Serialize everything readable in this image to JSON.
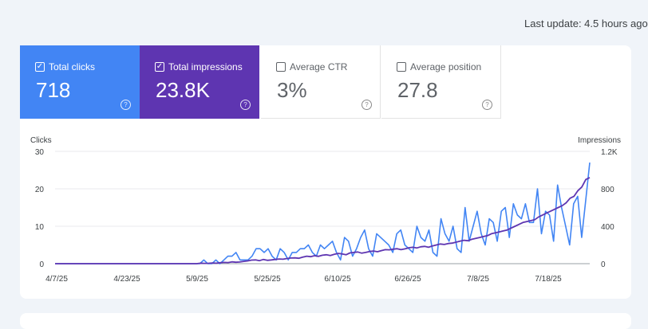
{
  "header": {
    "last_update": "Last update: 4.5 hours ago"
  },
  "metrics": [
    {
      "label": "Total clicks",
      "value": "718",
      "checked": true,
      "color": "#4285f4",
      "help_icon": "help-circle-icon"
    },
    {
      "label": "Total impressions",
      "value": "23.8K",
      "checked": true,
      "color": "#5e35b1",
      "help_icon": "help-circle-icon"
    },
    {
      "label": "Average CTR",
      "value": "3%",
      "checked": false,
      "help_icon": "help-circle-icon"
    },
    {
      "label": "Average position",
      "value": "27.8",
      "checked": false,
      "help_icon": "help-circle-icon"
    }
  ],
  "chart_data": {
    "type": "line",
    "ylabel_left": "Clicks",
    "ylabel_right": "Impressions",
    "y_left_ticks": [
      "0",
      "10",
      "20",
      "30"
    ],
    "y_right_ticks": [
      "0",
      "400",
      "800",
      "1.2K"
    ],
    "ylim_left": [
      0,
      30
    ],
    "ylim_right": [
      0,
      1200
    ],
    "x_tick_labels": [
      "4/7/25",
      "4/23/25",
      "5/9/25",
      "5/25/25",
      "6/10/25",
      "6/26/25",
      "7/8/25",
      "7/18/25"
    ],
    "grid": true,
    "series": [
      {
        "name": "Total clicks",
        "axis": "left",
        "color": "#4285f4",
        "values": [
          0,
          0,
          0,
          0,
          0,
          0,
          0,
          0,
          0,
          0,
          0,
          0,
          0,
          0,
          0,
          0,
          0,
          0,
          0,
          0,
          0,
          0,
          0,
          0,
          0,
          0,
          0,
          0,
          0,
          0,
          0,
          0,
          0,
          0,
          0,
          0,
          0,
          1,
          0,
          0,
          1,
          0,
          1,
          2,
          2,
          3,
          1,
          1,
          1,
          2,
          4,
          4,
          3,
          4,
          2,
          1,
          4,
          3,
          1,
          3,
          3,
          4,
          4,
          5,
          3,
          2,
          5,
          4,
          5,
          6,
          3,
          1,
          7,
          6,
          2,
          4,
          7,
          9,
          4,
          2,
          8,
          7,
          6,
          5,
          3,
          8,
          9,
          5,
          4,
          3,
          10,
          7,
          6,
          9,
          3,
          2,
          12,
          8,
          6,
          10,
          4,
          3,
          15,
          6,
          10,
          14,
          8,
          5,
          12,
          11,
          6,
          14,
          15,
          7,
          16,
          13,
          12,
          16,
          11,
          11,
          20,
          8,
          14,
          13,
          6,
          21,
          15,
          10,
          5,
          16,
          18,
          7,
          17,
          27
        ]
      },
      {
        "name": "Total impressions",
        "axis": "right",
        "color": "#5e35b1",
        "values": [
          0,
          0,
          0,
          0,
          0,
          0,
          0,
          0,
          0,
          0,
          0,
          0,
          0,
          0,
          0,
          0,
          0,
          0,
          0,
          0,
          0,
          0,
          0,
          0,
          0,
          0,
          0,
          0,
          0,
          0,
          0,
          0,
          0,
          0,
          0,
          0,
          0,
          5,
          3,
          4,
          8,
          5,
          10,
          14,
          12,
          20,
          15,
          18,
          25,
          30,
          38,
          40,
          32,
          45,
          36,
          40,
          45,
          50,
          48,
          55,
          60,
          62,
          58,
          70,
          80,
          75,
          85,
          78,
          90,
          95,
          88,
          100,
          110,
          105,
          95,
          115,
          120,
          125,
          112,
          120,
          130,
          135,
          128,
          140,
          150,
          148,
          155,
          160,
          150,
          158,
          170,
          175,
          168,
          180,
          185,
          175,
          190,
          200,
          210,
          205,
          215,
          220,
          230,
          240,
          250,
          245,
          260,
          270,
          280,
          290,
          300,
          320,
          330,
          340,
          350,
          360,
          380,
          400,
          420,
          440,
          450,
          460,
          470,
          500,
          520,
          540,
          560,
          580,
          600,
          620,
          650,
          700,
          720,
          780,
          820,
          900,
          920
        ]
      }
    ]
  }
}
